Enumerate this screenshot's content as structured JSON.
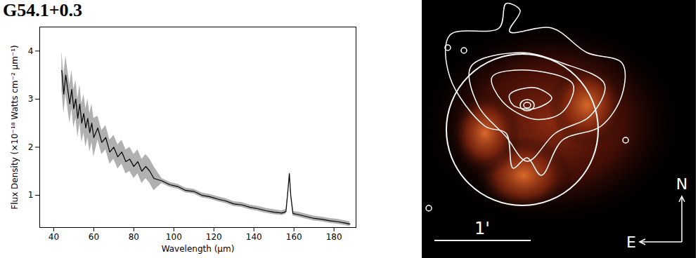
{
  "chart_data": {
    "type": "line",
    "title": "G54.1+0.3",
    "x_label": "Wavelength (μm)",
    "y_label": "Flux Density (×10⁻¹⁸ Watts cm⁻² μm⁻¹)",
    "x": [
      44,
      45,
      46,
      47,
      48,
      49,
      50,
      51,
      52,
      53,
      54,
      55,
      56,
      57,
      58,
      59,
      60,
      62,
      64,
      66,
      68,
      70,
      72,
      74,
      76,
      78,
      80,
      82,
      84,
      86,
      88,
      90,
      94,
      98,
      102,
      106,
      110,
      114,
      118,
      122,
      126,
      130,
      134,
      138,
      142,
      146,
      150,
      154,
      156,
      157,
      157.7,
      158.4,
      159.5,
      162,
      166,
      170,
      174,
      178,
      182,
      186,
      188
    ],
    "series": [
      {
        "color": "#000000",
        "values": [
          3.6,
          3.1,
          3.5,
          3.2,
          2.9,
          3.2,
          2.8,
          3.0,
          2.6,
          2.9,
          2.5,
          2.7,
          2.4,
          2.6,
          2.3,
          2.5,
          2.2,
          2.4,
          2.1,
          2.2,
          1.9,
          2.0,
          1.8,
          1.9,
          1.7,
          1.75,
          1.6,
          1.7,
          1.5,
          1.6,
          1.5,
          1.35,
          1.3,
          1.22,
          1.18,
          1.1,
          1.08,
          1.0,
          0.97,
          0.92,
          0.88,
          0.82,
          0.8,
          0.75,
          0.72,
          0.68,
          0.65,
          0.63,
          0.66,
          1.1,
          1.45,
          1.0,
          0.62,
          0.6,
          0.56,
          0.52,
          0.5,
          0.47,
          0.45,
          0.42,
          0.4
        ],
        "error": [
          0.4,
          0.4,
          0.4,
          0.4,
          0.4,
          0.4,
          0.4,
          0.4,
          0.4,
          0.4,
          0.4,
          0.4,
          0.4,
          0.4,
          0.4,
          0.4,
          0.4,
          0.25,
          0.25,
          0.25,
          0.25,
          0.25,
          0.25,
          0.25,
          0.25,
          0.25,
          0.25,
          0.25,
          0.25,
          0.25,
          0.25,
          0.25,
          0.05,
          0.05,
          0.05,
          0.05,
          0.05,
          0.05,
          0.05,
          0.05,
          0.05,
          0.05,
          0.05,
          0.05,
          0.05,
          0.05,
          0.05,
          0.05,
          0.05,
          0.05,
          0.05,
          0.05,
          0.05,
          0.05,
          0.05,
          0.05,
          0.05,
          0.05,
          0.05,
          0.05,
          0.05
        ],
        "error_color": "#b0b0b0"
      }
    ],
    "xlim": [
      33,
      191
    ],
    "xticks": [
      40,
      60,
      80,
      100,
      120,
      140,
      160,
      180
    ],
    "ylim": [
      0.33,
      4.5
    ],
    "yticks": [
      1,
      2,
      3,
      4
    ],
    "grid": false
  },
  "image_panel": {
    "scale_bar_label": "1'",
    "north_label": "N",
    "east_label": "E"
  }
}
